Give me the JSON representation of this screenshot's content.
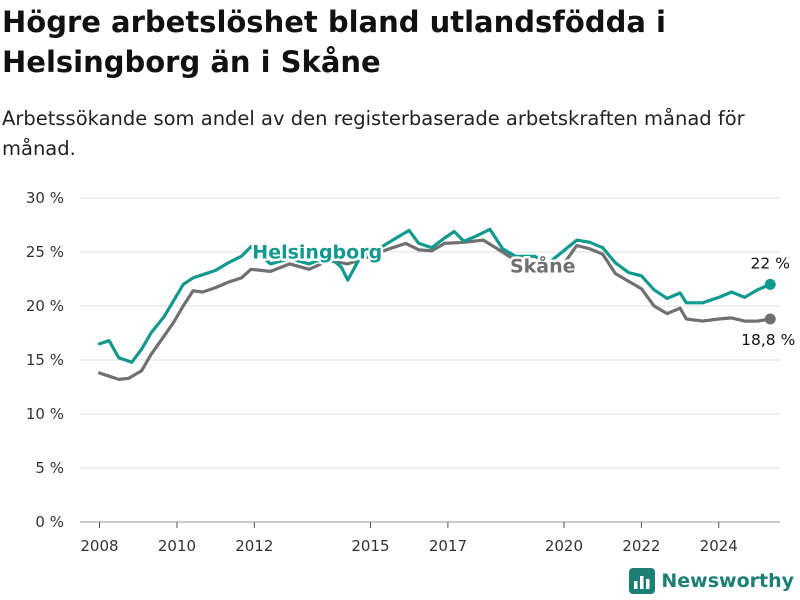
{
  "title": "Högre arbetslöshet bland utlandsfödda i Helsingborg än i Skåne",
  "subtitle": "Arbetssökande som andel av den registerbaserade arbetskraften månad för månad.",
  "brand": {
    "name": "Newsworthy",
    "icon": "bar-chart-logo-icon"
  },
  "colors": {
    "helsingborg": "#11998e",
    "skane": "#707070",
    "grid": "#dcdcdc",
    "axis": "#333333"
  },
  "chart_data": {
    "type": "line",
    "title": "Högre arbetslöshet bland utlandsfödda i Helsingborg än i Skåne",
    "subtitle": "Arbetssökande som andel av den registerbaserade arbetskraften månad för månad.",
    "xlabel": "",
    "ylabel": "",
    "x_range": [
      "2007-07-01",
      "2025-08-01"
    ],
    "x_ticks": [
      {
        "label": "2008",
        "value": "2008-01-01"
      },
      {
        "label": "2010",
        "value": "2010-01-01"
      },
      {
        "label": "2012",
        "value": "2012-01-01"
      },
      {
        "label": "2015",
        "value": "2015-01-01"
      },
      {
        "label": "2017",
        "value": "2017-01-01"
      },
      {
        "label": "2020",
        "value": "2020-01-01"
      },
      {
        "label": "2022",
        "value": "2022-01-01"
      },
      {
        "label": "2024",
        "value": "2024-01-01"
      }
    ],
    "ylim": [
      0,
      30
    ],
    "y_ticks": [
      {
        "label": "0 %",
        "value": 0
      },
      {
        "label": "5 %",
        "value": 5
      },
      {
        "label": "10 %",
        "value": 10
      },
      {
        "label": "15 %",
        "value": 15
      },
      {
        "label": "20 %",
        "value": 20
      },
      {
        "label": "25 %",
        "value": 25
      },
      {
        "label": "30 %",
        "value": 30
      }
    ],
    "grid": true,
    "legend": "inline-labels",
    "series": [
      {
        "name": "Helsingborg",
        "color": "#11998e",
        "end_label": "22 %",
        "points": [
          [
            "2008-01",
            16.5
          ],
          [
            "2008-04",
            16.8
          ],
          [
            "2008-07",
            15.2
          ],
          [
            "2008-09",
            15.0
          ],
          [
            "2008-11",
            14.8
          ],
          [
            "2009-02",
            16.0
          ],
          [
            "2009-05",
            17.5
          ],
          [
            "2009-09",
            19.0
          ],
          [
            "2009-12",
            20.5
          ],
          [
            "2010-03",
            22.0
          ],
          [
            "2010-06",
            22.6
          ],
          [
            "2010-09",
            22.9
          ],
          [
            "2011-01",
            23.3
          ],
          [
            "2011-05",
            24.0
          ],
          [
            "2011-09",
            24.6
          ],
          [
            "2011-12",
            25.5
          ],
          [
            "2012-06",
            23.9
          ],
          [
            "2012-12",
            24.4
          ],
          [
            "2013-06",
            23.9
          ],
          [
            "2013-12",
            24.6
          ],
          [
            "2014-04",
            23.6
          ],
          [
            "2014-06",
            22.4
          ],
          [
            "2014-10",
            24.6
          ],
          [
            "2015-03",
            25.2
          ],
          [
            "2015-09",
            26.3
          ],
          [
            "2016-01",
            27.0
          ],
          [
            "2016-04",
            25.8
          ],
          [
            "2016-08",
            25.4
          ],
          [
            "2016-12",
            26.3
          ],
          [
            "2017-03",
            26.9
          ],
          [
            "2017-06",
            26.0
          ],
          [
            "2017-10",
            26.5
          ],
          [
            "2018-02",
            27.1
          ],
          [
            "2018-06",
            25.3
          ],
          [
            "2018-10",
            24.6
          ],
          [
            "2019-04",
            24.6
          ],
          [
            "2019-08",
            23.9
          ],
          [
            "2019-12",
            24.9
          ],
          [
            "2020-05",
            26.1
          ],
          [
            "2020-09",
            25.9
          ],
          [
            "2021-01",
            25.4
          ],
          [
            "2021-05",
            24.0
          ],
          [
            "2021-09",
            23.1
          ],
          [
            "2022-01",
            22.8
          ],
          [
            "2022-05",
            21.5
          ],
          [
            "2022-09",
            20.7
          ],
          [
            "2023-01",
            21.2
          ],
          [
            "2023-03",
            20.3
          ],
          [
            "2023-08",
            20.3
          ],
          [
            "2024-01",
            20.8
          ],
          [
            "2024-05",
            21.3
          ],
          [
            "2024-09",
            20.8
          ],
          [
            "2025-01",
            21.5
          ],
          [
            "2025-05",
            22.0
          ]
        ]
      },
      {
        "name": "Skåne",
        "color": "#707070",
        "end_label": "18,8 %",
        "points": [
          [
            "2008-01",
            13.8
          ],
          [
            "2008-04",
            13.5
          ],
          [
            "2008-07",
            13.2
          ],
          [
            "2008-10",
            13.3
          ],
          [
            "2009-02",
            14.0
          ],
          [
            "2009-05",
            15.5
          ],
          [
            "2009-09",
            17.2
          ],
          [
            "2009-12",
            18.5
          ],
          [
            "2010-03",
            20.0
          ],
          [
            "2010-06",
            21.4
          ],
          [
            "2010-09",
            21.3
          ],
          [
            "2011-01",
            21.7
          ],
          [
            "2011-05",
            22.2
          ],
          [
            "2011-09",
            22.6
          ],
          [
            "2011-12",
            23.4
          ],
          [
            "2012-06",
            23.2
          ],
          [
            "2012-12",
            23.9
          ],
          [
            "2013-06",
            23.4
          ],
          [
            "2013-12",
            24.2
          ],
          [
            "2014-06",
            23.9
          ],
          [
            "2014-12",
            24.5
          ],
          [
            "2015-06",
            25.2
          ],
          [
            "2015-12",
            25.8
          ],
          [
            "2016-04",
            25.2
          ],
          [
            "2016-08",
            25.1
          ],
          [
            "2016-12",
            25.8
          ],
          [
            "2017-06",
            25.9
          ],
          [
            "2017-12",
            26.1
          ],
          [
            "2018-06",
            25.0
          ],
          [
            "2018-10",
            24.2
          ],
          [
            "2019-04",
            23.4
          ],
          [
            "2019-08",
            23.1
          ],
          [
            "2019-12",
            23.5
          ],
          [
            "2020-05",
            25.6
          ],
          [
            "2020-09",
            25.3
          ],
          [
            "2021-01",
            24.8
          ],
          [
            "2021-05",
            23.0
          ],
          [
            "2021-09",
            22.3
          ],
          [
            "2022-01",
            21.6
          ],
          [
            "2022-05",
            20.0
          ],
          [
            "2022-09",
            19.3
          ],
          [
            "2023-01",
            19.8
          ],
          [
            "2023-03",
            18.8
          ],
          [
            "2023-08",
            18.6
          ],
          [
            "2024-01",
            18.8
          ],
          [
            "2024-05",
            18.9
          ],
          [
            "2024-09",
            18.6
          ],
          [
            "2025-01",
            18.6
          ],
          [
            "2025-05",
            18.8
          ]
        ]
      }
    ],
    "annotations": [
      {
        "text": "Helsingborg",
        "series": "Helsingborg",
        "x": "2012-01",
        "y": 24.6
      },
      {
        "text": "Skåne",
        "series": "Skåne",
        "x": "2018-12",
        "y": 23.4
      },
      {
        "text": "22 %",
        "series": "Helsingborg",
        "x": "2025-05",
        "y": 22.0
      },
      {
        "text": "18,8 %",
        "series": "Skåne",
        "x": "2025-05",
        "y": 18.8
      }
    ]
  }
}
